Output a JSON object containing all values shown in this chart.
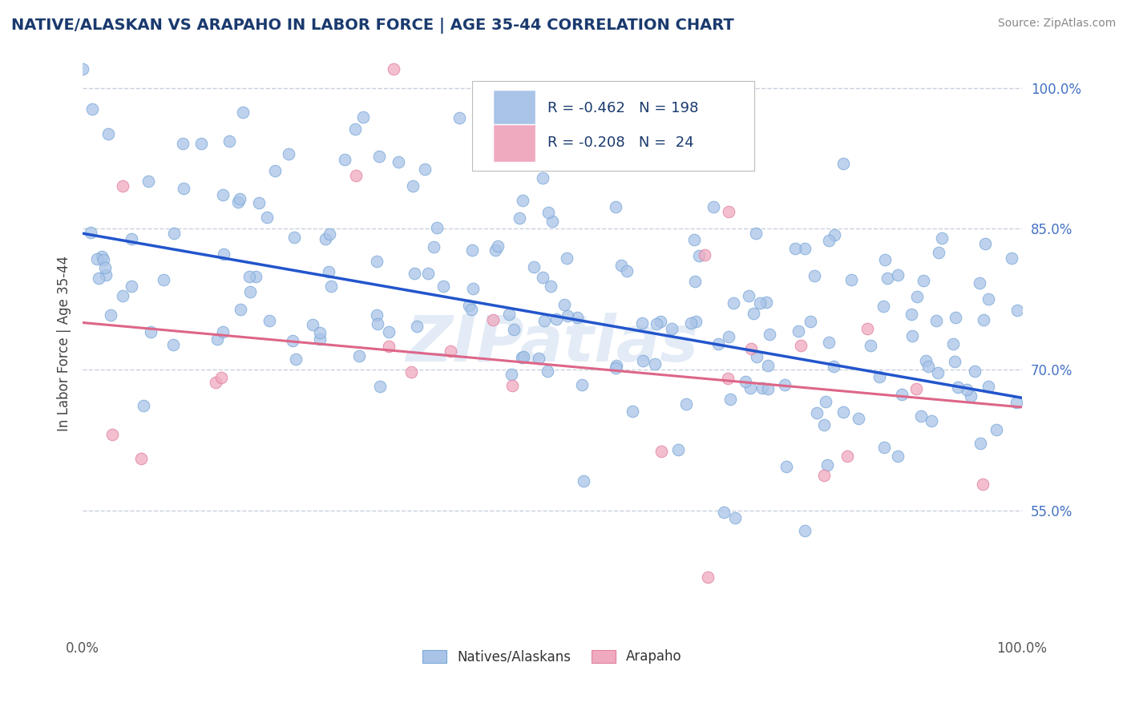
{
  "title": "NATIVE/ALASKAN VS ARAPAHO IN LABOR FORCE | AGE 35-44 CORRELATION CHART",
  "source_text": "Source: ZipAtlas.com",
  "ylabel": "In Labor Force | Age 35-44",
  "xmin": 0.0,
  "xmax": 1.0,
  "ymin": 0.42,
  "ymax": 1.035,
  "xtick_labels": [
    "0.0%",
    "100.0%"
  ],
  "ytick_labels": [
    "55.0%",
    "70.0%",
    "85.0%",
    "100.0%"
  ],
  "ytick_vals": [
    0.55,
    0.7,
    0.85,
    1.0
  ],
  "xtick_vals": [
    0.0,
    1.0
  ],
  "blue_color": "#aac4e8",
  "blue_edge_color": "#7aa8d8",
  "pink_color": "#f0aac0",
  "pink_edge_color": "#e080a0",
  "blue_line_color": "#2255cc",
  "pink_line_color": "#dd6688",
  "R_blue": -0.462,
  "N_blue": 198,
  "R_pink": -0.208,
  "N_pink": 24,
  "legend_label_blue": "Natives/Alaskans",
  "legend_label_pink": "Arapaho",
  "watermark": "ZIPatlas",
  "title_color": "#1a3a6e",
  "grid_color": "#c8d0dc",
  "background_color": "#ffffff",
  "blue_line_start_y": 0.845,
  "blue_line_end_y": 0.67,
  "pink_line_start_y": 0.75,
  "pink_line_end_y": 0.66
}
